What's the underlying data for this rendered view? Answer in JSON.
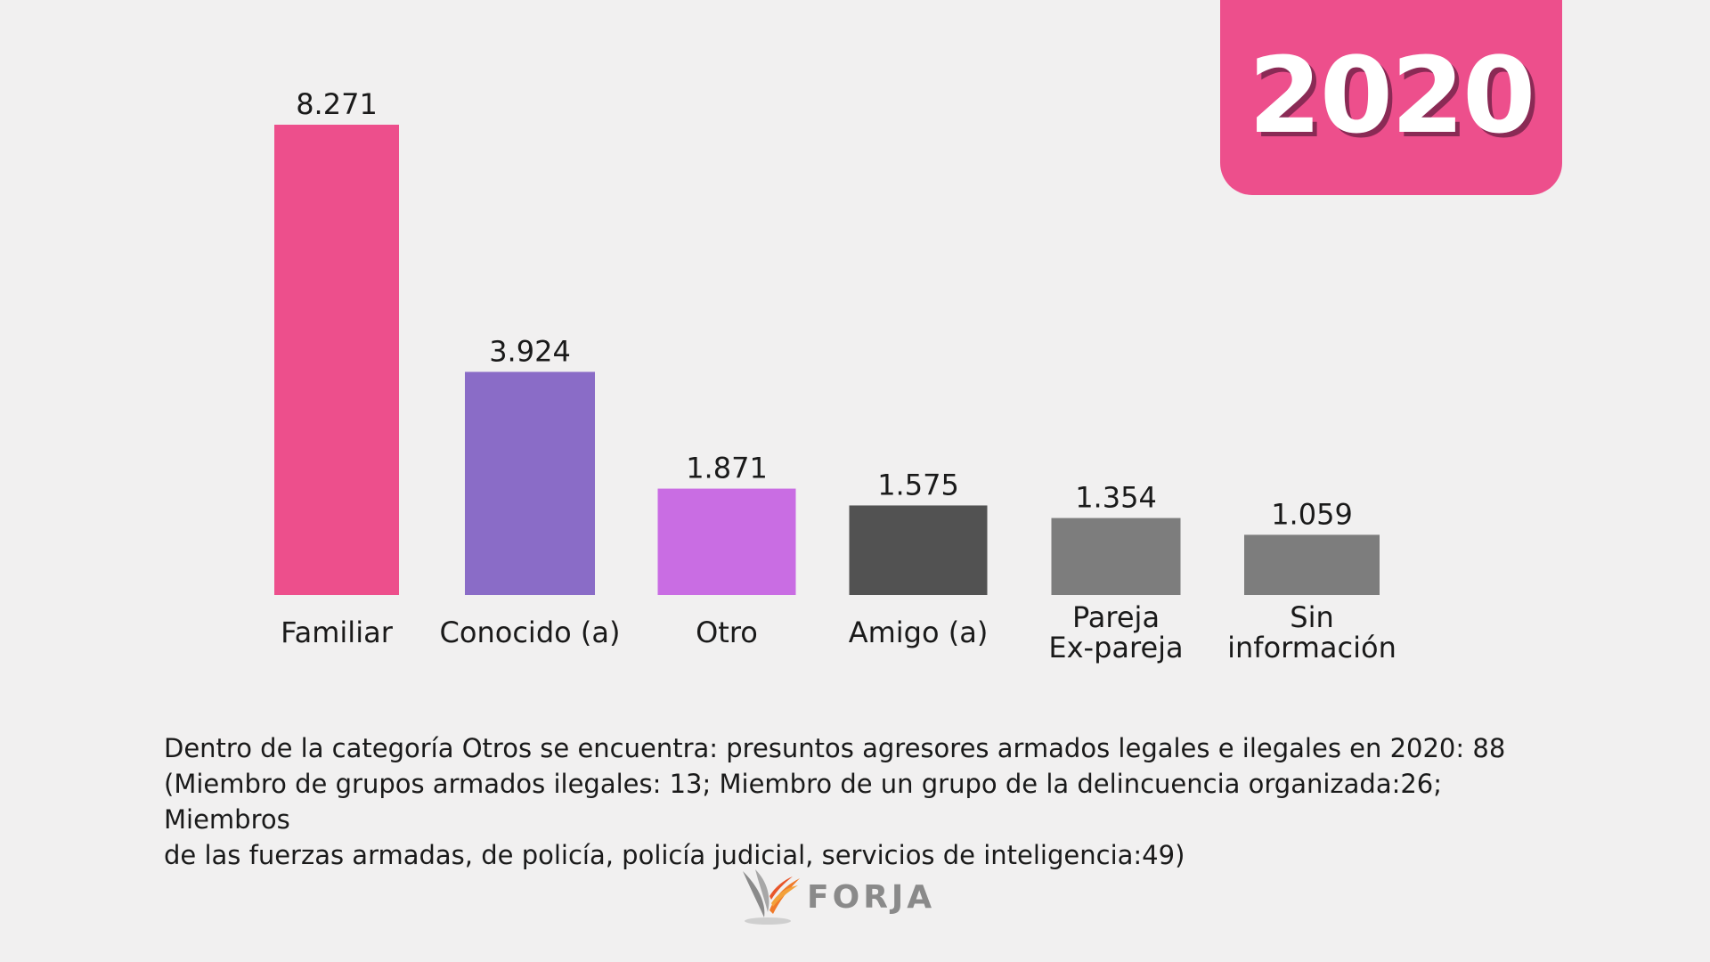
{
  "badge": {
    "year": "2020",
    "color": "#ed4f8c"
  },
  "chart_data": {
    "type": "bar",
    "categories": [
      [
        "Familiar"
      ],
      [
        "Conocido (a)"
      ],
      [
        "Otro"
      ],
      [
        "Amigo (a)"
      ],
      [
        "Pareja",
        "Ex-pareja"
      ],
      [
        "Sin",
        "información"
      ]
    ],
    "values": [
      8271,
      3924,
      1871,
      1575,
      1354,
      1059
    ],
    "value_labels": [
      "8.271",
      "3.924",
      "1.871",
      "1.575",
      "1.354",
      "1.059"
    ],
    "colors": [
      "#ed4f8c",
      "#8a6cc7",
      "#c96de3",
      "#525252",
      "#7d7d7d",
      "#7d7d7d"
    ],
    "title": "",
    "xlabel": "",
    "ylabel": "",
    "grid": false,
    "legend": "none"
  },
  "footnote": {
    "line1": "Dentro de la categoría Otros se encuentra: presuntos agresores armados legales e ilegales en 2020: 88",
    "line2": "(Miembro de grupos armados ilegales: 13; Miembro de un grupo de la delincuencia organizada:26; Miembros",
    "line3": "de las fuerzas armadas, de policía, policía judicial, servicios de inteligencia:49)"
  },
  "logo": {
    "text": "FORJA"
  }
}
